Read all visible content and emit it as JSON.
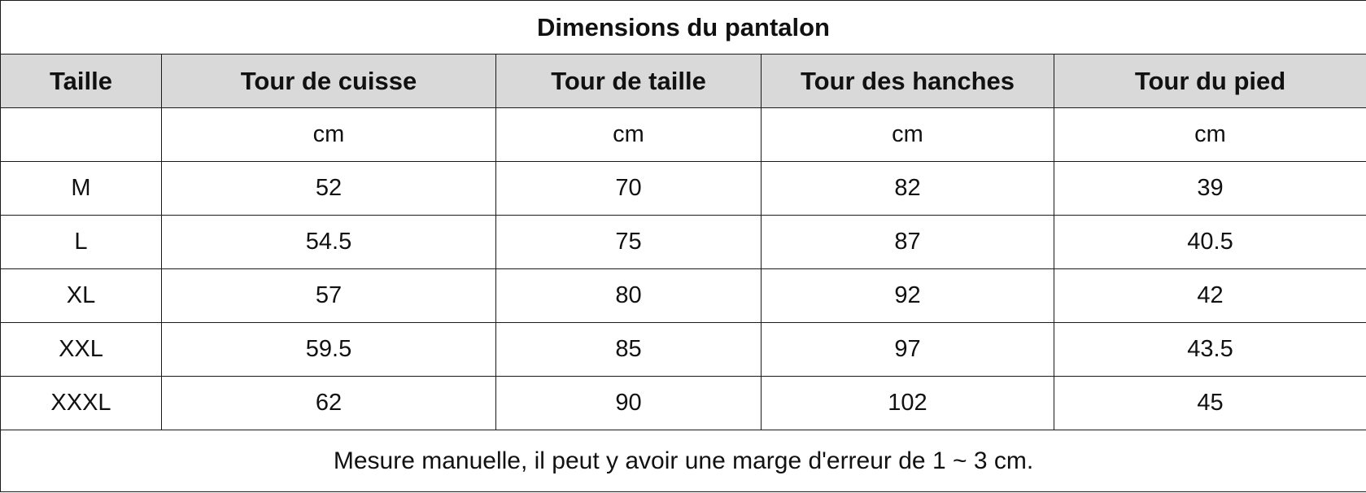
{
  "title": "Dimensions du pantalon",
  "headers": [
    "Taille",
    "Tour de cuisse",
    "Tour de taille",
    "Tour des hanches",
    "Tour du pied"
  ],
  "units": [
    "",
    "cm",
    "cm",
    "cm",
    "cm"
  ],
  "rows": [
    [
      "M",
      "52",
      "70",
      "82",
      "39"
    ],
    [
      "L",
      "54.5",
      "75",
      "87",
      "40.5"
    ],
    [
      "XL",
      "57",
      "80",
      "92",
      "42"
    ],
    [
      "XXL",
      "59.5",
      "85",
      "97",
      "43.5"
    ],
    [
      "XXXL",
      "62",
      "90",
      "102",
      "45"
    ]
  ],
  "note": "Mesure manuelle, il peut y avoir une marge d'erreur de 1 ~ 3 cm.",
  "colors": {
    "header_bg": "#d9d9d9",
    "border": "#1a1a1a",
    "text": "#111111"
  }
}
